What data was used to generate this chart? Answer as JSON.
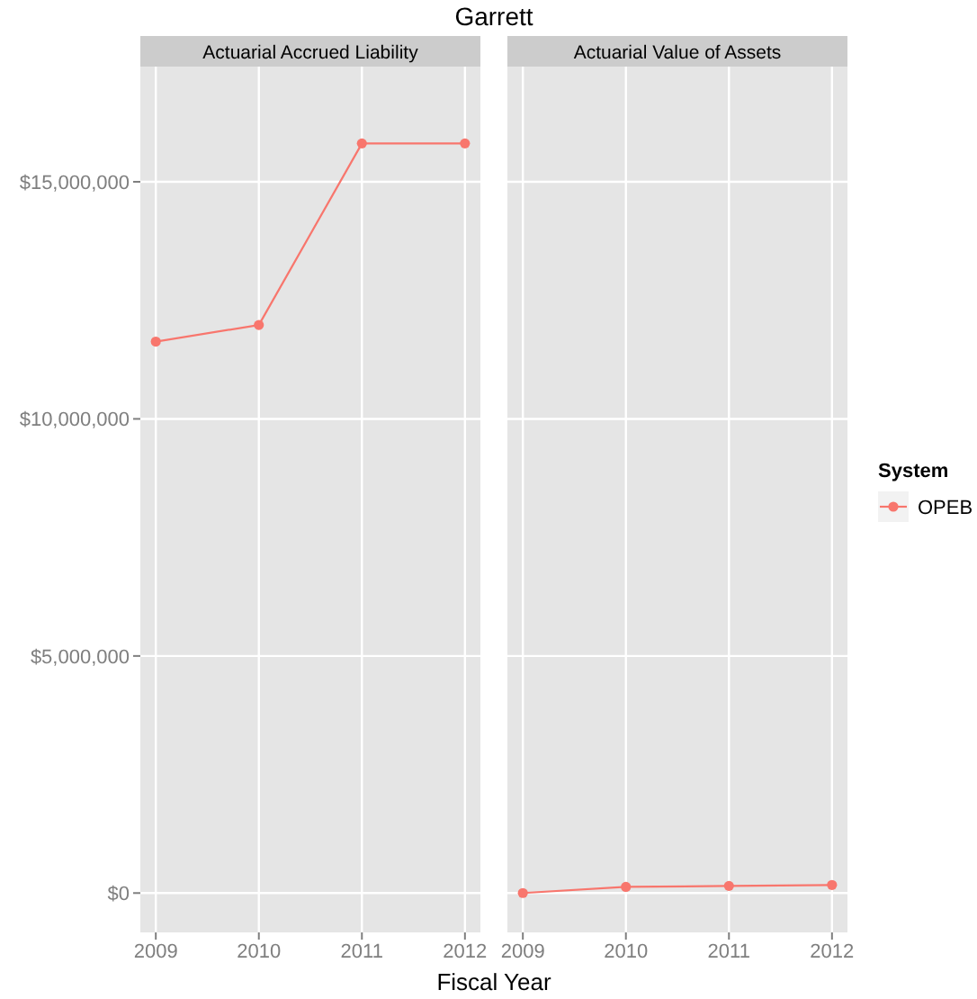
{
  "chart_data": [
    {
      "type": "line",
      "title": "Garrett",
      "subtitle": "Actuarial Accrued Liability",
      "xlabel": "Fiscal Year",
      "x": [
        2009,
        2010,
        2011,
        2012
      ],
      "series": [
        {
          "color": "#f8766d",
          "values": [
            11630000,
            11980000,
            15810000,
            15810000
          ]
        }
      ],
      "xlim": [
        2008.85,
        2012.15
      ],
      "xticks": [
        2009,
        2010,
        2011,
        2012
      ],
      "ylim": [
        -830000,
        17430000
      ],
      "yticks": [
        {
          "value": 0,
          "label": "$0"
        },
        {
          "value": 5000000,
          "label": "$5,000,000"
        },
        {
          "value": 10000000,
          "label": "$10,000,000"
        },
        {
          "value": 15000000,
          "label": "$15,000,000"
        }
      ],
      "grid": true,
      "marker": "circle"
    },
    {
      "type": "line",
      "subtitle": "Actuarial Value of Assets",
      "x": [
        2009,
        2010,
        2011,
        2012
      ],
      "series": [
        {
          "name": "OPEB",
          "color": "#f8766d",
          "values": [
            0,
            130000,
            150000,
            170000
          ]
        }
      ],
      "xlim": [
        2008.85,
        2012.15
      ],
      "xticks": [
        2009,
        2010,
        2011,
        2012
      ],
      "ylim": [
        -830000,
        17430000
      ],
      "yticks": [
        {
          "value": 0,
          "label": null
        },
        {
          "value": 5000000,
          "label": null
        },
        {
          "value": 10000000,
          "label": null
        },
        {
          "value": 15000000,
          "label": null
        }
      ],
      "tick_labels": "x",
      "grid": true,
      "marker": "circle",
      "legend": "right",
      "legend_title": "System"
    }
  ]
}
